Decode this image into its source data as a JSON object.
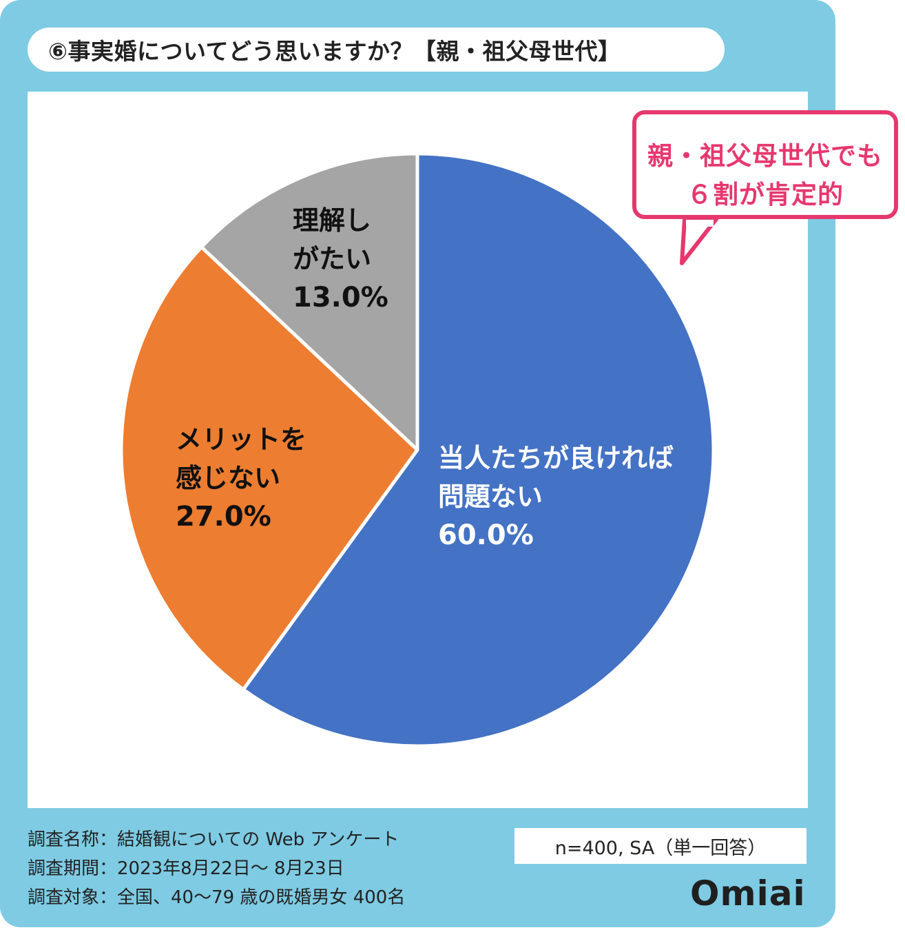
{
  "title": "⑥事実婚についてどう思いますか？【親・祖父母世代】",
  "callout": {
    "line1": "親・祖父母世代でも",
    "line2": "６割が肯定的"
  },
  "chart_data": {
    "type": "pie",
    "start": "12 o'clock, clockwise",
    "slices": [
      {
        "label_lines": [
          "当人たちが良ければ",
          "問題ない"
        ],
        "value": 60.0,
        "value_label": "60.0%",
        "color": "#4472c4",
        "text_color": "#ffffff"
      },
      {
        "label_lines": [
          "メリットを",
          "感じない"
        ],
        "value": 27.0,
        "value_label": "27.0%",
        "color": "#ed7d31",
        "text_color": "#111111"
      },
      {
        "label_lines": [
          "理解し",
          "がたい"
        ],
        "value": 13.0,
        "value_label": "13.0%",
        "color": "#a5a5a5",
        "text_color": "#111111"
      }
    ]
  },
  "footer": {
    "survey_name": "調査名称：結婚観についての Web アンケート",
    "survey_period": "調査期間：2023年8月22日～ 8月23日",
    "survey_target": "調査対象：全国、40～79 歳の既婚男女 400名"
  },
  "sample_note": "n=400, SA（単一回答）",
  "logo": "Omiai",
  "colors": {
    "frame": "#7ecbe3",
    "accent": "#e6386e"
  }
}
